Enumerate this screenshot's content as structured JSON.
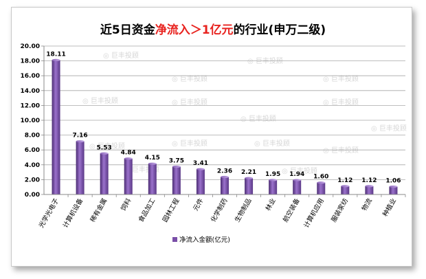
{
  "chart_data": {
    "type": "bar",
    "title_parts": [
      {
        "text": "近5日资金",
        "color": "#000000"
      },
      {
        "text": "净流入＞1亿元",
        "color": "#e8231f"
      },
      {
        "text": "的行业(申万二级)",
        "color": "#000000"
      }
    ],
    "categories": [
      "光学光电子",
      "计算机设备",
      "稀有金属",
      "饲料",
      "食品加工",
      "园林工程",
      "元件",
      "化学制药",
      "生物制品",
      "林业",
      "航空装备",
      "计算机应用",
      "服装家纺",
      "物流",
      "种植业"
    ],
    "series": [
      {
        "name": "净流入金额(亿元)",
        "values": [
          18.11,
          7.16,
          5.53,
          4.84,
          4.15,
          3.75,
          3.41,
          2.36,
          2.21,
          1.95,
          1.94,
          1.6,
          1.12,
          1.12,
          1.06
        ]
      }
    ],
    "value_labels": [
      "18.11",
      "7.16",
      "5.53",
      "4.84",
      "4.15",
      "3.75",
      "3.41",
      "2.36",
      "2.21",
      "1.95",
      "1.94",
      "1.60",
      "1.12",
      "1.12",
      "1.06"
    ],
    "yticks": [
      "0.00",
      "2.00",
      "4.00",
      "6.00",
      "8.00",
      "10.00",
      "12.00",
      "14.00",
      "16.00",
      "18.00",
      "20.00"
    ],
    "ylim": [
      0,
      20
    ],
    "grid": true,
    "legend_position": "bottom",
    "bar_color": "#7a4fa8",
    "watermark": "巨丰投顾"
  }
}
